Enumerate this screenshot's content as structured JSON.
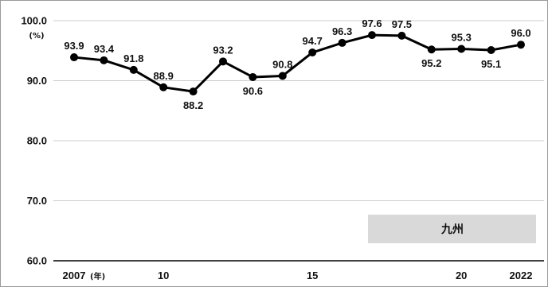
{
  "chart_data": {
    "type": "line",
    "x": [
      2007,
      2008,
      2009,
      2010,
      2011,
      2012,
      2013,
      2014,
      2015,
      2016,
      2017,
      2018,
      2019,
      2020,
      2021,
      2022
    ],
    "xtick_labels": [
      {
        "x": 2007,
        "label": "2007"
      },
      {
        "x": 2010,
        "label": "10"
      },
      {
        "x": 2015,
        "label": "15"
      },
      {
        "x": 2020,
        "label": "20"
      },
      {
        "x": 2022,
        "label": "2022"
      }
    ],
    "x_unit": "(年)",
    "series": [
      {
        "name": "九州",
        "values": [
          93.9,
          93.4,
          91.8,
          88.9,
          88.2,
          93.2,
          90.6,
          90.8,
          94.7,
          96.3,
          97.6,
          97.5,
          95.2,
          95.3,
          95.1,
          96.0
        ],
        "value_labels": [
          "93.9",
          "93.4",
          "91.8",
          "88.9",
          "88.2",
          "93.2",
          "90.6",
          "90.8",
          "94.7",
          "96.3",
          "97.6",
          "97.5",
          "95.2",
          "95.3",
          "95.1",
          "96.0"
        ]
      }
    ],
    "ylim": [
      60,
      100
    ],
    "yticks": [
      60,
      70,
      80,
      90,
      100
    ],
    "ytick_labels": [
      "60.0",
      "70.0",
      "80.0",
      "90.0",
      "100.0"
    ],
    "y_unit": "(%)",
    "grid": "horizontal",
    "legend": {
      "position": "bottom-right",
      "label": "九州"
    },
    "colors": {
      "line": "#000000",
      "marker": "#000000",
      "grid": "#cccccc",
      "legend_bg": "#d9d9d9"
    }
  }
}
